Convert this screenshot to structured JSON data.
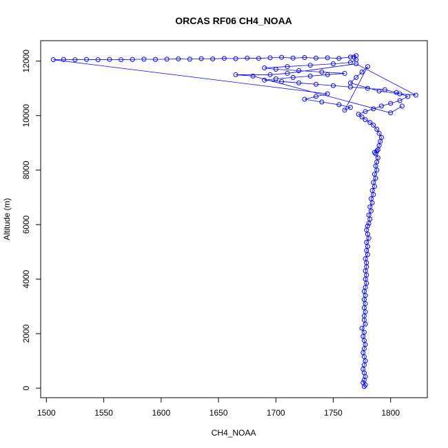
{
  "chart_data": {
    "type": "scatter",
    "title": "ORCAS RF06 CH4_NOAA",
    "xlabel": "CH4_NOAA",
    "ylabel": "Altitude (m)",
    "xlim": [
      1495,
      1832
    ],
    "ylim": [
      -350,
      12750
    ],
    "xticks": [
      1500,
      1550,
      1600,
      1650,
      1700,
      1750,
      1800
    ],
    "yticks": [
      0,
      2000,
      4000,
      6000,
      8000,
      10000,
      12000
    ],
    "grid": false,
    "legend": "none",
    "series": [
      {
        "marker": "open-circle",
        "connected": true,
        "color": "#0000ff",
        "points": [
          [
            1777,
            60
          ],
          [
            1778,
            120
          ],
          [
            1776,
            200
          ],
          [
            1777,
            300
          ],
          [
            1778,
            420
          ],
          [
            1777,
            560
          ],
          [
            1776,
            700
          ],
          [
            1777,
            850
          ],
          [
            1778,
            1000
          ],
          [
            1777,
            1150
          ],
          [
            1776,
            1300
          ],
          [
            1777,
            1450
          ],
          [
            1778,
            1600
          ],
          [
            1777,
            1750
          ],
          [
            1776,
            1900
          ],
          [
            1777,
            2050
          ],
          [
            1775,
            2200
          ],
          [
            1778,
            2350
          ],
          [
            1777,
            2500
          ],
          [
            1777,
            2650
          ],
          [
            1778,
            2800
          ],
          [
            1777,
            2950
          ],
          [
            1778,
            3100
          ],
          [
            1777,
            3250
          ],
          [
            1778,
            3400
          ],
          [
            1777,
            3550
          ],
          [
            1778,
            3700
          ],
          [
            1779,
            3850
          ],
          [
            1778,
            4000
          ],
          [
            1779,
            4150
          ],
          [
            1778,
            4300
          ],
          [
            1779,
            4450
          ],
          [
            1779,
            4600
          ],
          [
            1778,
            4750
          ],
          [
            1780,
            4900
          ],
          [
            1779,
            5050
          ],
          [
            1780,
            5200
          ],
          [
            1779,
            5350
          ],
          [
            1781,
            5500
          ],
          [
            1780,
            5650
          ],
          [
            1779,
            5800
          ],
          [
            1780,
            5950
          ],
          [
            1781,
            6050
          ],
          [
            1782,
            6200
          ],
          [
            1781,
            6350
          ],
          [
            1783,
            6500
          ],
          [
            1782,
            6650
          ],
          [
            1784,
            6800
          ],
          [
            1783,
            6950
          ],
          [
            1785,
            7100
          ],
          [
            1784,
            7250
          ],
          [
            1786,
            7400
          ],
          [
            1785,
            7550
          ],
          [
            1787,
            7700
          ],
          [
            1786,
            7850
          ],
          [
            1788,
            8000
          ],
          [
            1787,
            8150
          ],
          [
            1788,
            8300
          ],
          [
            1789,
            8450
          ],
          [
            1787,
            8600
          ],
          [
            1788,
            8700
          ],
          [
            1786,
            8650
          ],
          [
            1789,
            8750
          ],
          [
            1790,
            8900
          ],
          [
            1791,
            9050
          ],
          [
            1792,
            9200
          ],
          [
            1790,
            9350
          ],
          [
            1788,
            9500
          ],
          [
            1785,
            9650
          ],
          [
            1782,
            9750
          ],
          [
            1778,
            9850
          ],
          [
            1775,
            9950
          ],
          [
            1772,
            10050
          ],
          [
            1778,
            10150
          ],
          [
            1785,
            10250
          ],
          [
            1792,
            10350
          ],
          [
            1800,
            10450
          ],
          [
            1808,
            10550
          ],
          [
            1815,
            10700
          ],
          [
            1805,
            10850
          ],
          [
            1795,
            10950
          ],
          [
            1780,
            11000
          ],
          [
            1765,
            11050
          ],
          [
            1750,
            11100
          ],
          [
            1735,
            11150
          ],
          [
            1720,
            11200
          ],
          [
            1705,
            11250
          ],
          [
            1690,
            11300
          ],
          [
            1700,
            11350
          ],
          [
            1715,
            11400
          ],
          [
            1730,
            11450
          ],
          [
            1745,
            11500
          ],
          [
            1760,
            11550
          ],
          [
            1740,
            11600
          ],
          [
            1720,
            11650
          ],
          [
            1700,
            11700
          ],
          [
            1690,
            11750
          ],
          [
            1710,
            11800
          ],
          [
            1730,
            11850
          ],
          [
            1750,
            11900
          ],
          [
            1765,
            11950
          ],
          [
            1770,
            12050
          ],
          [
            1768,
            12150
          ],
          [
            1770,
            12200
          ],
          [
            1765,
            12150
          ],
          [
            1755,
            12100
          ],
          [
            1745,
            12120
          ],
          [
            1735,
            12110
          ],
          [
            1725,
            12130
          ],
          [
            1715,
            12110
          ],
          [
            1705,
            12140
          ],
          [
            1695,
            12120
          ],
          [
            1685,
            12100
          ],
          [
            1675,
            12110
          ],
          [
            1665,
            12090
          ],
          [
            1655,
            12100
          ],
          [
            1645,
            12080
          ],
          [
            1635,
            12090
          ],
          [
            1625,
            12070
          ],
          [
            1615,
            12080
          ],
          [
            1605,
            12070
          ],
          [
            1595,
            12060
          ],
          [
            1585,
            12070
          ],
          [
            1575,
            12060
          ],
          [
            1565,
            12050
          ],
          [
            1555,
            12060
          ],
          [
            1545,
            12050
          ],
          [
            1535,
            12060
          ],
          [
            1525,
            12050
          ],
          [
            1515,
            12060
          ],
          [
            1506,
            12050
          ],
          [
            1745,
            10800
          ],
          [
            1735,
            10700
          ],
          [
            1725,
            10600
          ],
          [
            1740,
            10500
          ],
          [
            1755,
            10400
          ],
          [
            1765,
            10300
          ],
          [
            1760,
            10200
          ],
          [
            1780,
            11800
          ],
          [
            1775,
            11600
          ],
          [
            1770,
            11400
          ],
          [
            1765,
            11200
          ],
          [
            1790,
            10900
          ],
          [
            1808,
            10800
          ],
          [
            1822,
            10750
          ],
          [
            1770,
            11900
          ],
          [
            1710,
            11550
          ],
          [
            1695,
            11500
          ],
          [
            1665,
            11500
          ],
          [
            1680,
            11450
          ],
          [
            1800,
            10100
          ],
          [
            1810,
            10350
          ]
        ]
      }
    ]
  }
}
